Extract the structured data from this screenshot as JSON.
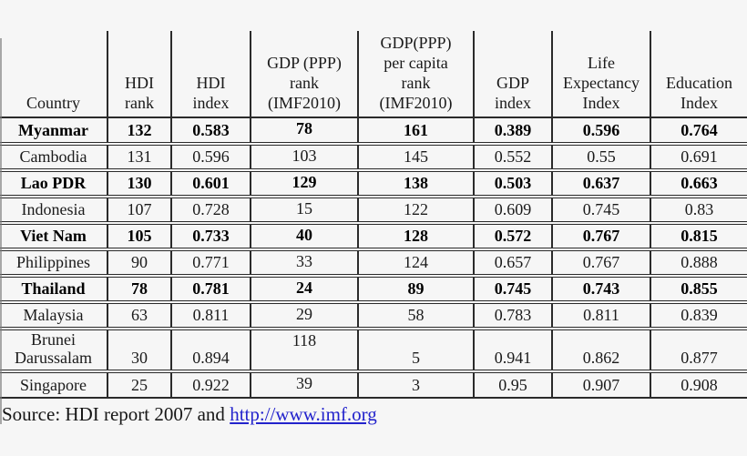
{
  "page": {
    "background": "#f6f6f6",
    "border_color": "#2b2b2b",
    "link_color": "#2323cc"
  },
  "table": {
    "columns": [
      {
        "label": "Country"
      },
      {
        "label": "HDI\nrank"
      },
      {
        "label": "HDI\nindex"
      },
      {
        "label": "GDP (PPP)\nrank\n(IMF2010)"
      },
      {
        "label": "GDP(PPP)\nper capita\nrank\n(IMF2010)"
      },
      {
        "label": "GDP\nindex"
      },
      {
        "label": "Life\nExpectancy\nIndex"
      },
      {
        "label": "Education\nIndex"
      }
    ],
    "rows": [
      {
        "country": "Myanmar",
        "bold": true,
        "hdi_rank": "132",
        "hdi_index": "0.583",
        "gdp_ppp_rank": "78",
        "gdp_ppp_per_capita_rank": "161",
        "gdp_index": "0.389",
        "life_expectancy_index": "0.596",
        "education_index": "0.764"
      },
      {
        "country": "Cambodia",
        "bold": false,
        "hdi_rank": "131",
        "hdi_index": "0.596",
        "gdp_ppp_rank": "103",
        "gdp_ppp_per_capita_rank": "145",
        "gdp_index": "0.552",
        "life_expectancy_index": "0.55",
        "education_index": "0.691"
      },
      {
        "country": "Lao PDR",
        "bold": true,
        "hdi_rank": "130",
        "hdi_index": "0.601",
        "gdp_ppp_rank": "129",
        "gdp_ppp_per_capita_rank": "138",
        "gdp_index": "0.503",
        "life_expectancy_index": "0.637",
        "education_index": "0.663"
      },
      {
        "country": "Indonesia",
        "bold": false,
        "hdi_rank": "107",
        "hdi_index": "0.728",
        "gdp_ppp_rank": "15",
        "gdp_ppp_per_capita_rank": "122",
        "gdp_index": "0.609",
        "life_expectancy_index": "0.745",
        "education_index": "0.83"
      },
      {
        "country": "Viet Nam",
        "bold": true,
        "hdi_rank": "105",
        "hdi_index": "0.733",
        "gdp_ppp_rank": "40",
        "gdp_ppp_per_capita_rank": "128",
        "gdp_index": "0.572",
        "life_expectancy_index": "0.767",
        "education_index": "0.815"
      },
      {
        "country": "Philippines",
        "bold": false,
        "hdi_rank": "90",
        "hdi_index": "0.771",
        "gdp_ppp_rank": "33",
        "gdp_ppp_per_capita_rank": "124",
        "gdp_index": "0.657",
        "life_expectancy_index": "0.767",
        "education_index": "0.888"
      },
      {
        "country": "Thailand",
        "bold": true,
        "hdi_rank": "78",
        "hdi_index": "0.781",
        "gdp_ppp_rank": "24",
        "gdp_ppp_per_capita_rank": "89",
        "gdp_index": "0.745",
        "life_expectancy_index": "0.743",
        "education_index": "0.855"
      },
      {
        "country": "Malaysia",
        "bold": false,
        "hdi_rank": "63",
        "hdi_index": "0.811",
        "gdp_ppp_rank": "29",
        "gdp_ppp_per_capita_rank": "58",
        "gdp_index": "0.783",
        "life_expectancy_index": "0.811",
        "education_index": "0.839"
      },
      {
        "country": "Brunei\nDarussalam",
        "bold": false,
        "hdi_rank": "30",
        "hdi_index": "0.894",
        "gdp_ppp_rank": "118",
        "gdp_ppp_per_capita_rank": "5",
        "gdp_index": "0.941",
        "life_expectancy_index": "0.862",
        "education_index": "0.877"
      },
      {
        "country": "Singapore",
        "bold": false,
        "hdi_rank": "25",
        "hdi_index": "0.922",
        "gdp_ppp_rank": "39",
        "gdp_ppp_per_capita_rank": "3",
        "gdp_index": "0.95",
        "life_expectancy_index": "0.907",
        "education_index": "0.908"
      }
    ]
  },
  "source": {
    "prefix": "Source: HDI report 2007 and ",
    "link_text": "http://www.imf.org"
  }
}
